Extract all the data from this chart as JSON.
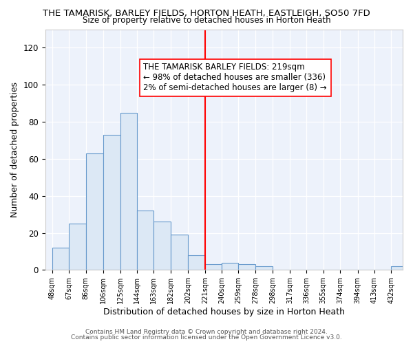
{
  "title": "THE TAMARISK, BARLEY FIELDS, HORTON HEATH, EASTLEIGH, SO50 7FD",
  "subtitle": "Size of property relative to detached houses in Horton Heath",
  "xlabel": "Distribution of detached houses by size in Horton Heath",
  "ylabel": "Number of detached properties",
  "bar_edges": [
    48,
    67,
    86,
    106,
    125,
    144,
    163,
    182,
    202,
    221,
    240,
    259,
    278,
    298,
    317,
    336,
    355,
    374,
    394,
    413,
    432
  ],
  "bar_heights": [
    12,
    25,
    63,
    73,
    85,
    32,
    26,
    19,
    8,
    3,
    4,
    3,
    2,
    0,
    0,
    0,
    0,
    0,
    0,
    0,
    2
  ],
  "bar_color": "#dce8f5",
  "bar_edge_color": "#6699cc",
  "reference_line_x": 221,
  "reference_line_color": "red",
  "annotation_line1": "THE TAMARISK BARLEY FIELDS: 219sqm",
  "annotation_line2": "← 98% of detached houses are smaller (336)",
  "annotation_line3": "2% of semi-detached houses are larger (8) →",
  "ylim": [
    0,
    130
  ],
  "xlim": [
    40,
    445
  ],
  "background_color": "#ffffff",
  "plot_background": "#edf2fb",
  "footer_line1": "Contains HM Land Registry data © Crown copyright and database right 2024.",
  "footer_line2": "Contains public sector information licensed under the Open Government Licence v3.0.",
  "tick_labels": [
    "48sqm",
    "67sqm",
    "86sqm",
    "106sqm",
    "125sqm",
    "144sqm",
    "163sqm",
    "182sqm",
    "202sqm",
    "221sqm",
    "240sqm",
    "259sqm",
    "278sqm",
    "298sqm",
    "317sqm",
    "336sqm",
    "355sqm",
    "374sqm",
    "394sqm",
    "413sqm",
    "432sqm"
  ],
  "yticks": [
    0,
    20,
    40,
    60,
    80,
    100,
    120
  ]
}
